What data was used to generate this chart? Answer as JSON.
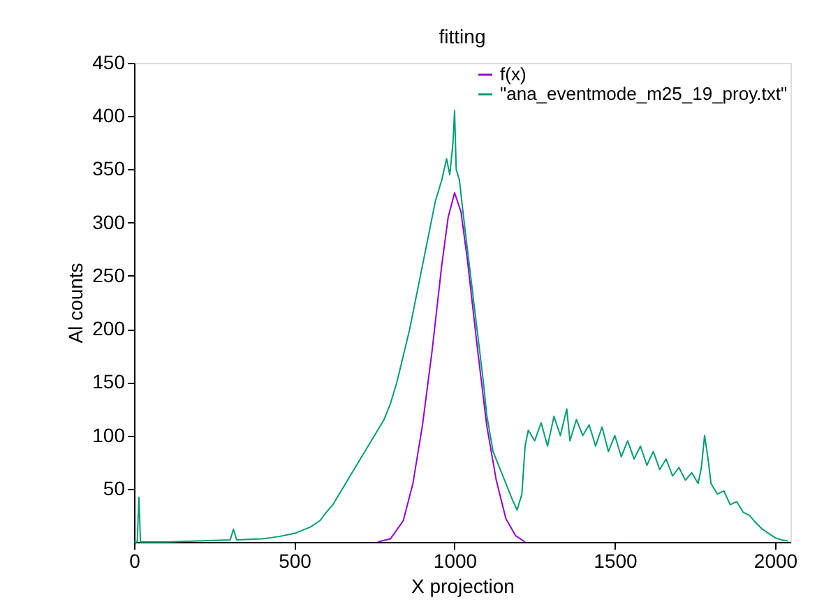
{
  "chart_data": {
    "type": "line",
    "title": "fitting",
    "xlabel": "X projection",
    "ylabel": "Al counts",
    "xlim": [
      0,
      2048
    ],
    "ylim": [
      0,
      450
    ],
    "xticks": [
      0,
      500,
      1000,
      1500,
      2000
    ],
    "yticks": [
      50,
      100,
      150,
      200,
      250,
      300,
      350,
      400,
      450
    ],
    "grid": false,
    "legend": "top right",
    "line_style": "solid",
    "marker": "none",
    "series": [
      {
        "name": "f(x)",
        "color": "#9400d3",
        "x": [
          760,
          800,
          840,
          870,
          900,
          930,
          960,
          980,
          1000,
          1020,
          1040,
          1070,
          1100,
          1130,
          1160,
          1190,
          1220
        ],
        "values": [
          0,
          3,
          20,
          55,
          110,
          180,
          260,
          305,
          328,
          310,
          265,
          185,
          110,
          58,
          22,
          6,
          0
        ]
      },
      {
        "name": "\"ana_eventmode_m25_19_proy.txt\"",
        "color": "#009e73",
        "x": [
          0,
          10,
          15,
          20,
          100,
          200,
          300,
          310,
          320,
          400,
          450,
          500,
          550,
          580,
          600,
          620,
          640,
          660,
          680,
          700,
          720,
          740,
          760,
          780,
          800,
          820,
          840,
          860,
          880,
          900,
          920,
          940,
          960,
          975,
          985,
          995,
          1000,
          1005,
          1015,
          1030,
          1050,
          1070,
          1090,
          1100,
          1120,
          1140,
          1160,
          1180,
          1195,
          1210,
          1220,
          1230,
          1250,
          1270,
          1290,
          1310,
          1330,
          1350,
          1360,
          1380,
          1400,
          1420,
          1440,
          1460,
          1480,
          1500,
          1520,
          1540,
          1560,
          1580,
          1600,
          1620,
          1640,
          1660,
          1680,
          1700,
          1720,
          1740,
          1760,
          1770,
          1780,
          1790,
          1800,
          1820,
          1840,
          1860,
          1880,
          1900,
          1920,
          1940,
          1960,
          1980,
          2000,
          2020,
          2040
        ],
        "values": [
          0,
          0,
          42,
          0,
          0,
          1,
          2,
          12,
          2,
          3,
          5,
          8,
          14,
          20,
          28,
          35,
          45,
          55,
          65,
          75,
          85,
          95,
          105,
          115,
          130,
          150,
          175,
          200,
          230,
          260,
          290,
          320,
          340,
          360,
          345,
          375,
          405,
          350,
          340,
          300,
          250,
          200,
          150,
          120,
          85,
          70,
          55,
          40,
          30,
          45,
          90,
          105,
          95,
          112,
          90,
          118,
          100,
          125,
          95,
          115,
          100,
          110,
          90,
          108,
          85,
          100,
          80,
          95,
          78,
          90,
          72,
          85,
          68,
          78,
          62,
          70,
          58,
          65,
          55,
          70,
          100,
          80,
          55,
          45,
          48,
          35,
          38,
          28,
          25,
          18,
          12,
          8,
          4,
          2,
          1
        ]
      }
    ]
  }
}
